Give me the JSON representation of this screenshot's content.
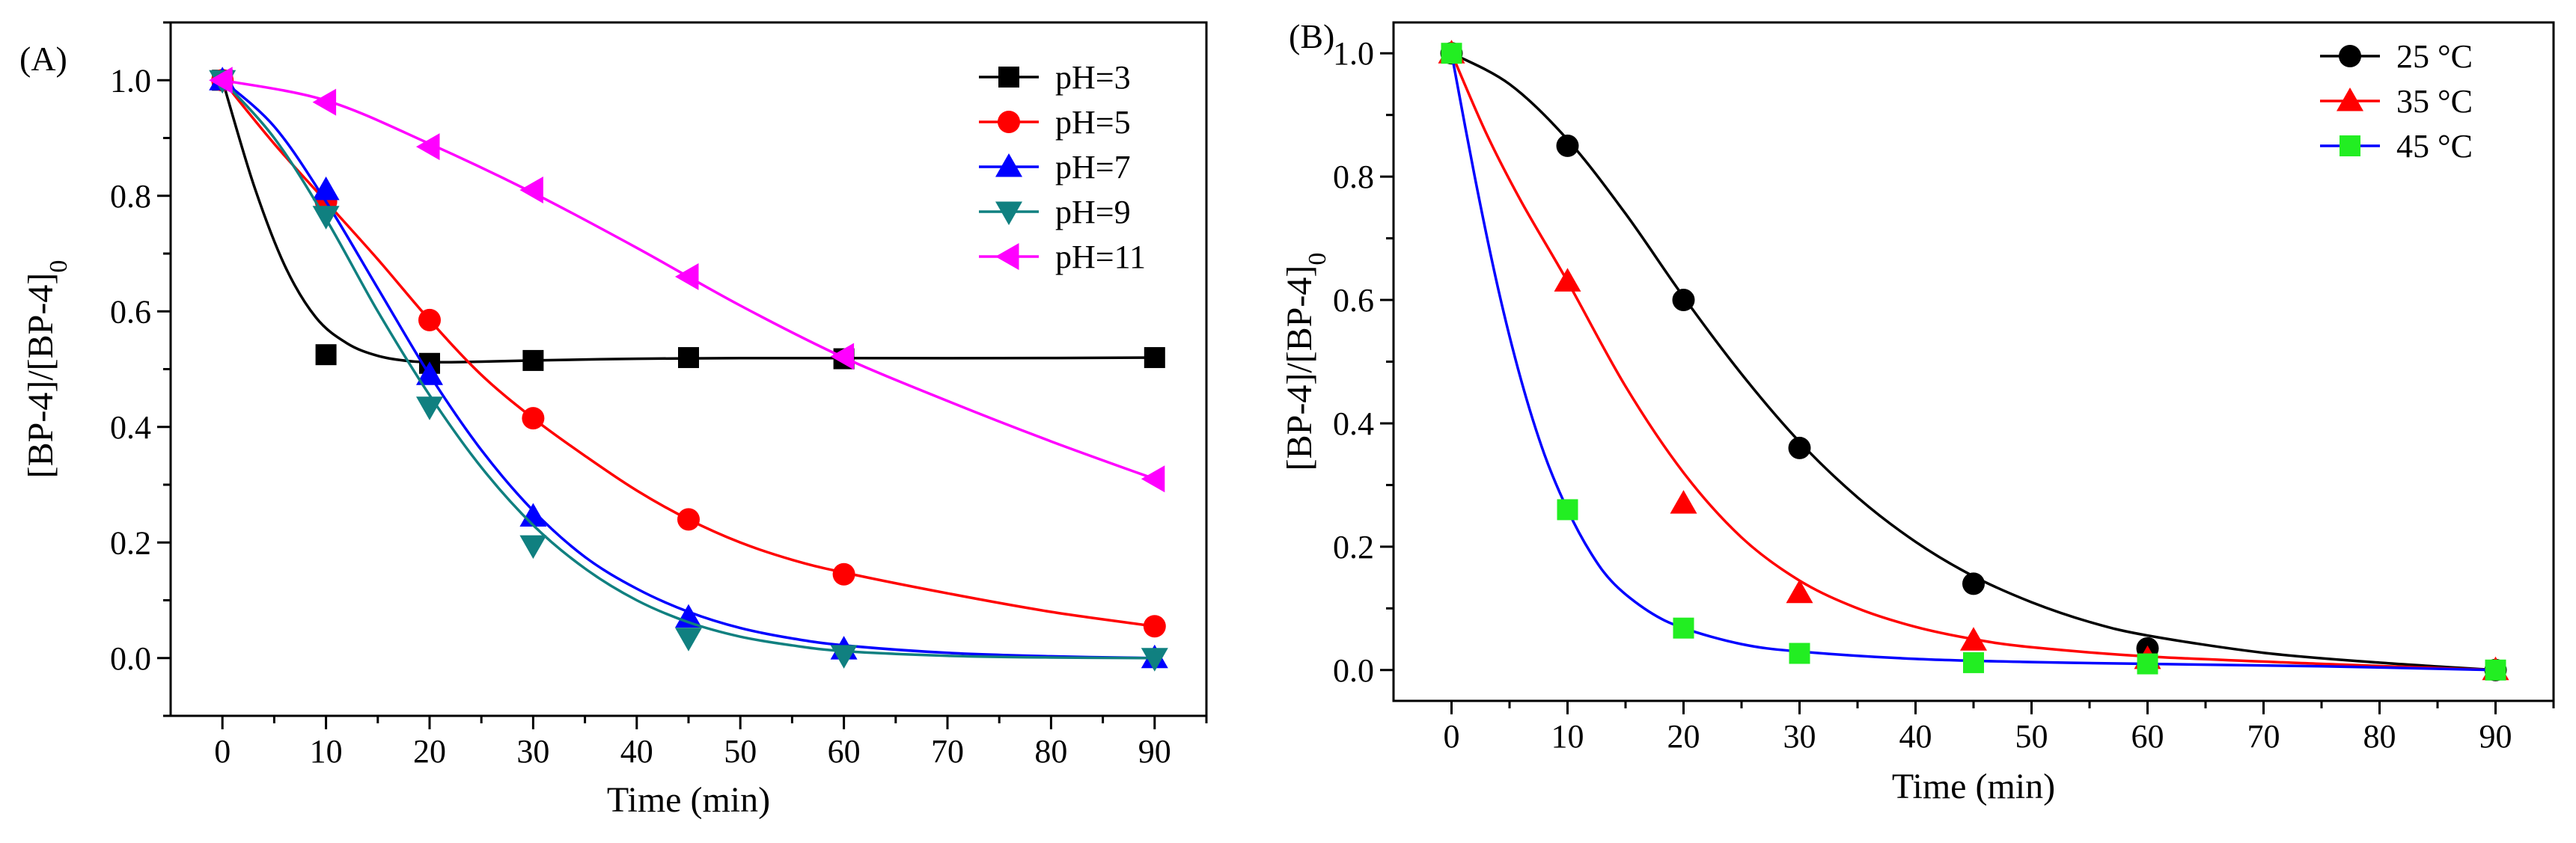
{
  "chart_data": [
    {
      "type": "line",
      "panel_label": "(A)",
      "xlabel": "Time (min)",
      "ylabel_main": "[BP-4]/[BP-4]",
      "ylabel_sub": "0",
      "xlim": [
        -5,
        95
      ],
      "ylim": [
        -0.1,
        1.1
      ],
      "xticks": [
        0,
        10,
        20,
        30,
        40,
        50,
        60,
        70,
        80,
        90
      ],
      "yticks": [
        0.0,
        0.2,
        0.4,
        0.6,
        0.8,
        1.0
      ],
      "ytick_labels": [
        "0.0",
        "0.2",
        "0.4",
        "0.6",
        "0.8",
        "1.0"
      ],
      "grid": false,
      "legend_position": "top-right",
      "series": [
        {
          "name": "pH=3",
          "color": "#000000",
          "marker": "square",
          "x": [
            0,
            10,
            20,
            30,
            45,
            60,
            90
          ],
          "y": [
            1.0,
            0.525,
            0.51,
            0.515,
            0.52,
            0.518,
            0.52
          ],
          "fit": [
            [
              0,
              1.0
            ],
            [
              3,
              0.82
            ],
            [
              6,
              0.68
            ],
            [
              9,
              0.59
            ],
            [
              12,
              0.545
            ],
            [
              15,
              0.523
            ],
            [
              18,
              0.514
            ],
            [
              21,
              0.512
            ],
            [
              25,
              0.513
            ],
            [
              30,
              0.515
            ],
            [
              40,
              0.518
            ],
            [
              50,
              0.519
            ],
            [
              60,
              0.519
            ],
            [
              75,
              0.519
            ],
            [
              90,
              0.52
            ]
          ]
        },
        {
          "name": "pH=5",
          "color": "#ff0000",
          "marker": "circle",
          "x": [
            0,
            10,
            20,
            30,
            45,
            60,
            90
          ],
          "y": [
            1.0,
            0.79,
            0.585,
            0.415,
            0.24,
            0.145,
            0.055
          ],
          "fit": [
            [
              0,
              1.0
            ],
            [
              5,
              0.89
            ],
            [
              10,
              0.79
            ],
            [
              15,
              0.69
            ],
            [
              20,
              0.585
            ],
            [
              25,
              0.49
            ],
            [
              30,
              0.415
            ],
            [
              35,
              0.35
            ],
            [
              40,
              0.29
            ],
            [
              45,
              0.24
            ],
            [
              50,
              0.2
            ],
            [
              55,
              0.17
            ],
            [
              60,
              0.148
            ],
            [
              70,
              0.112
            ],
            [
              80,
              0.08
            ],
            [
              90,
              0.055
            ]
          ]
        },
        {
          "name": "pH=7",
          "color": "#0000ff",
          "marker": "triangle-up",
          "x": [
            0,
            10,
            20,
            30,
            45,
            60,
            90
          ],
          "y": [
            1.0,
            0.81,
            0.49,
            0.245,
            0.07,
            0.015,
            0.0
          ],
          "fit": [
            [
              0,
              1.0
            ],
            [
              5,
              0.92
            ],
            [
              10,
              0.79
            ],
            [
              15,
              0.64
            ],
            [
              20,
              0.49
            ],
            [
              25,
              0.36
            ],
            [
              30,
              0.255
            ],
            [
              35,
              0.175
            ],
            [
              40,
              0.12
            ],
            [
              45,
              0.08
            ],
            [
              50,
              0.052
            ],
            [
              55,
              0.034
            ],
            [
              60,
              0.022
            ],
            [
              70,
              0.009
            ],
            [
              80,
              0.003
            ],
            [
              90,
              0.0
            ]
          ]
        },
        {
          "name": "pH=9",
          "color": "#108080",
          "marker": "triangle-down",
          "x": [
            0,
            10,
            20,
            30,
            45,
            60,
            90
          ],
          "y": [
            1.0,
            0.765,
            0.435,
            0.195,
            0.035,
            0.005,
            0.0
          ],
          "fit": [
            [
              0,
              1.0
            ],
            [
              5,
              0.9
            ],
            [
              10,
              0.76
            ],
            [
              15,
              0.6
            ],
            [
              20,
              0.455
            ],
            [
              25,
              0.33
            ],
            [
              30,
              0.23
            ],
            [
              35,
              0.155
            ],
            [
              40,
              0.1
            ],
            [
              45,
              0.062
            ],
            [
              50,
              0.037
            ],
            [
              55,
              0.022
            ],
            [
              60,
              0.012
            ],
            [
              70,
              0.004
            ],
            [
              80,
              0.001
            ],
            [
              90,
              0.0
            ]
          ]
        },
        {
          "name": "pH=11",
          "color": "#ff00ff",
          "marker": "triangle-left",
          "x": [
            0,
            10,
            20,
            30,
            45,
            60,
            90
          ],
          "y": [
            1.0,
            0.962,
            0.885,
            0.81,
            0.66,
            0.522,
            0.31
          ],
          "fit": [
            [
              0,
              1.0
            ],
            [
              10,
              0.965
            ],
            [
              20,
              0.89
            ],
            [
              30,
              0.805
            ],
            [
              40,
              0.71
            ],
            [
              50,
              0.61
            ],
            [
              60,
              0.52
            ],
            [
              70,
              0.445
            ],
            [
              80,
              0.375
            ],
            [
              90,
              0.31
            ]
          ]
        }
      ]
    },
    {
      "type": "line",
      "panel_label": "(B)",
      "xlabel": "Time (min)",
      "ylabel_main": "[BP-4]/[BP-4]",
      "ylabel_sub": "0",
      "xlim": [
        -5,
        95
      ],
      "ylim": [
        -0.05,
        1.05
      ],
      "xticks": [
        0,
        10,
        20,
        30,
        40,
        50,
        60,
        70,
        80,
        90
      ],
      "yticks": [
        0.0,
        0.2,
        0.4,
        0.6,
        0.8,
        1.0
      ],
      "ytick_labels": [
        "0.0",
        "0.2",
        "0.4",
        "0.6",
        "0.8",
        "1.0"
      ],
      "grid": false,
      "legend_position": "top-right",
      "series": [
        {
          "name": "25 °C",
          "color": "#000000",
          "marker": "circle",
          "x": [
            0,
            10,
            20,
            30,
            45,
            60,
            90
          ],
          "y": [
            1.0,
            0.85,
            0.6,
            0.36,
            0.14,
            0.035,
            0.0
          ],
          "fit": [
            [
              0,
              1.0
            ],
            [
              5,
              0.95
            ],
            [
              10,
              0.86
            ],
            [
              15,
              0.74
            ],
            [
              20,
              0.605
            ],
            [
              25,
              0.48
            ],
            [
              30,
              0.37
            ],
            [
              35,
              0.28
            ],
            [
              40,
              0.208
            ],
            [
              45,
              0.152
            ],
            [
              50,
              0.11
            ],
            [
              55,
              0.078
            ],
            [
              60,
              0.056
            ],
            [
              70,
              0.028
            ],
            [
              80,
              0.012
            ],
            [
              90,
              0.0
            ]
          ]
        },
        {
          "name": "35 °C",
          "color": "#ff0000",
          "marker": "triangle-up",
          "x": [
            0,
            10,
            20,
            30,
            45,
            60,
            90
          ],
          "y": [
            1.0,
            0.63,
            0.27,
            0.125,
            0.048,
            0.018,
            0.0
          ],
          "fit": [
            [
              0,
              1.0
            ],
            [
              3,
              0.87
            ],
            [
              6,
              0.76
            ],
            [
              10,
              0.63
            ],
            [
              15,
              0.46
            ],
            [
              20,
              0.32
            ],
            [
              25,
              0.215
            ],
            [
              30,
              0.145
            ],
            [
              35,
              0.1
            ],
            [
              40,
              0.07
            ],
            [
              45,
              0.05
            ],
            [
              50,
              0.037
            ],
            [
              60,
              0.022
            ],
            [
              75,
              0.01
            ],
            [
              90,
              0.0
            ]
          ]
        },
        {
          "name": "45 °C",
          "color": "#0000ff",
          "marker": "square",
          "marker_color": "#22ee22",
          "x": [
            0,
            10,
            20,
            30,
            45,
            60,
            90
          ],
          "y": [
            1.0,
            0.26,
            0.068,
            0.027,
            0.012,
            0.01,
            0.0
          ],
          "fit": [
            [
              0,
              1.0
            ],
            [
              2,
              0.8
            ],
            [
              4,
              0.62
            ],
            [
              6,
              0.47
            ],
            [
              8,
              0.35
            ],
            [
              10,
              0.26
            ],
            [
              12,
              0.19
            ],
            [
              14,
              0.14
            ],
            [
              17,
              0.095
            ],
            [
              20,
              0.068
            ],
            [
              25,
              0.042
            ],
            [
              30,
              0.03
            ],
            [
              40,
              0.018
            ],
            [
              50,
              0.013
            ],
            [
              60,
              0.01
            ],
            [
              75,
              0.006
            ],
            [
              90,
              0.0
            ]
          ]
        }
      ]
    }
  ]
}
